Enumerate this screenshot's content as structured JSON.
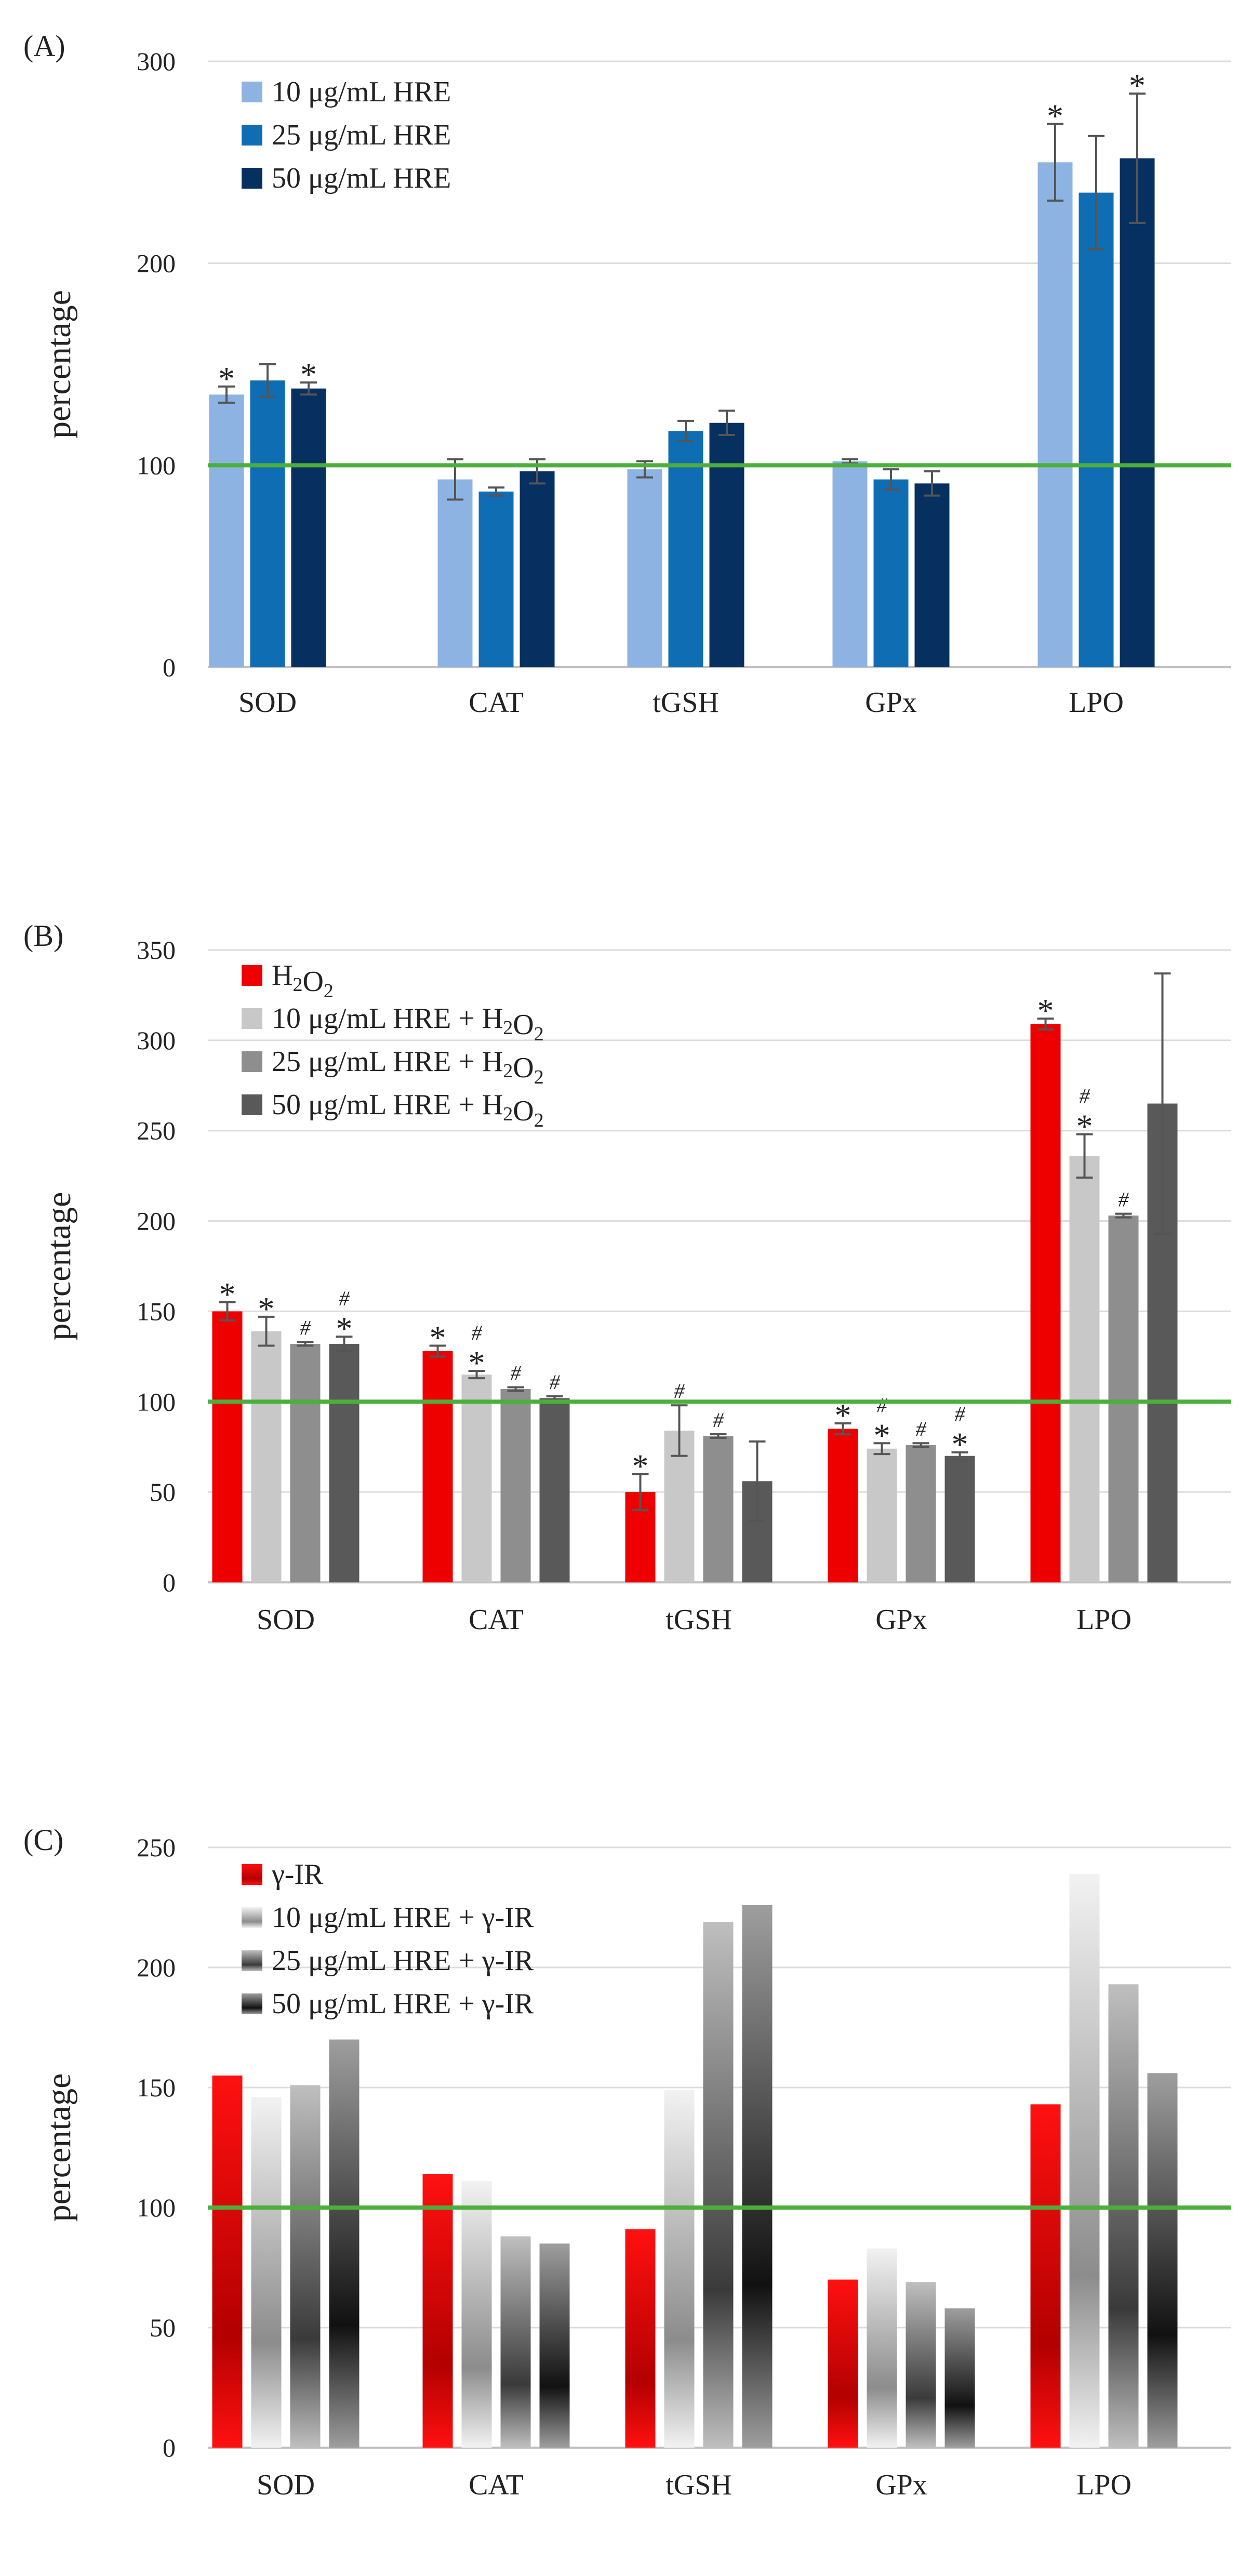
{
  "chart_data": [
    {
      "type": "bar",
      "panel_label": "(A)",
      "categories": [
        "SOD",
        "CAT",
        "tGSH",
        "GPx",
        "LPO"
      ],
      "ylabel": "percentage",
      "ylim": [
        0,
        300
      ],
      "yticks": [
        0,
        100,
        200,
        300
      ],
      "reference_line": 100,
      "reference_color": "#4caf3c",
      "grid": true,
      "legend_position": "top-left",
      "series": [
        {
          "name": "10 μg/mL HRE",
          "color": "#8db3e2",
          "values": [
            135,
            93,
            98,
            102,
            250
          ],
          "errors": [
            4,
            10,
            4,
            1,
            19
          ],
          "stars": [
            true,
            false,
            false,
            false,
            true
          ]
        },
        {
          "name": "25 μg/mL HRE",
          "color": "#0f6eb3",
          "values": [
            142,
            87,
            117,
            93,
            235
          ],
          "errors": [
            8,
            2,
            5,
            5,
            28
          ],
          "stars": [
            false,
            false,
            false,
            false,
            false
          ]
        },
        {
          "name": "50 μg/mL HRE",
          "color": "#05305f",
          "values": [
            138,
            97,
            121,
            91,
            252
          ],
          "errors": [
            3,
            6,
            6,
            6,
            32
          ],
          "stars": [
            true,
            false,
            false,
            false,
            true
          ]
        }
      ]
    },
    {
      "type": "bar",
      "panel_label": "(B)",
      "categories": [
        "SOD",
        "CAT",
        "tGSH",
        "GPx",
        "LPO"
      ],
      "ylabel": "percentage",
      "ylim": [
        0,
        350
      ],
      "yticks": [
        0,
        50,
        100,
        150,
        200,
        250,
        300,
        350
      ],
      "reference_line": 100,
      "reference_color": "#4caf3c",
      "grid": true,
      "legend_position": "top-left",
      "series": [
        {
          "name": "H",
          "name_sub1": "2",
          "name_mid": "O",
          "name_sub2": "2",
          "name_tail": "",
          "color": "#ee0000",
          "values": [
            150,
            128,
            50,
            85,
            309
          ],
          "errors": [
            5,
            3,
            10,
            3,
            3
          ],
          "stars": [
            true,
            true,
            true,
            true,
            true
          ],
          "hashes": [
            false,
            false,
            false,
            false,
            false
          ]
        },
        {
          "name": "10 μg/mL HRE + H",
          "name_sub1": "2",
          "name_mid": "O",
          "name_sub2": "2",
          "name_tail": "",
          "color": "#c8c8c8",
          "values": [
            139,
            115,
            84,
            74,
            236
          ],
          "errors": [
            8,
            2,
            14,
            3,
            12
          ],
          "stars": [
            true,
            true,
            false,
            true,
            true
          ],
          "hashes": [
            false,
            true,
            true,
            true,
            true
          ]
        },
        {
          "name": "25 μg/mL HRE + H",
          "name_sub1": "2",
          "name_mid": "O",
          "name_sub2": "2",
          "name_tail": "",
          "color": "#8e8e8e",
          "values": [
            132,
            107,
            81,
            76,
            203
          ],
          "errors": [
            1,
            1,
            1,
            1,
            1
          ],
          "stars": [
            false,
            false,
            false,
            false,
            false
          ],
          "hashes": [
            true,
            true,
            true,
            true,
            true
          ]
        },
        {
          "name": "50 μg/mL HRE + H",
          "name_sub1": "2",
          "name_mid": "O",
          "name_sub2": "2",
          "name_tail": "",
          "color": "#595959",
          "values": [
            132,
            102,
            56,
            70,
            265
          ],
          "errors": [
            4,
            1,
            22,
            2,
            72
          ],
          "stars": [
            true,
            false,
            false,
            true,
            false
          ],
          "hashes": [
            true,
            true,
            false,
            true,
            false
          ]
        }
      ]
    },
    {
      "type": "bar",
      "panel_label": "(C)",
      "categories": [
        "SOD",
        "CAT",
        "tGSH",
        "GPx",
        "LPO"
      ],
      "ylabel": "percentage",
      "ylim": [
        0,
        250
      ],
      "yticks": [
        0,
        50,
        100,
        150,
        200,
        250
      ],
      "reference_line": 100,
      "reference_color": "#4caf3c",
      "grid": true,
      "legend_position": "top-left",
      "series": [
        {
          "name": "γ-IR",
          "color": "#ee0000",
          "gradient": [
            "#ff1010",
            "#b30000"
          ],
          "values": [
            155,
            114,
            91,
            70,
            143
          ]
        },
        {
          "name": "10 μg/mL HRE + γ-IR",
          "color": "#bdbdbd",
          "gradient": [
            "#f2f2f2",
            "#8c8c8c"
          ],
          "values": [
            146,
            111,
            149,
            83,
            239
          ]
        },
        {
          "name": "25 μg/mL HRE + γ-IR",
          "color": "#6e6e6e",
          "gradient": [
            "#bfbfbf",
            "#3a3a3a"
          ],
          "values": [
            151,
            88,
            219,
            69,
            193
          ]
        },
        {
          "name": "50 μg/mL HRE + γ-IR",
          "color": "#444444",
          "gradient": [
            "#9e9e9e",
            "#111111"
          ],
          "values": [
            170,
            85,
            226,
            58,
            156
          ]
        }
      ]
    }
  ]
}
